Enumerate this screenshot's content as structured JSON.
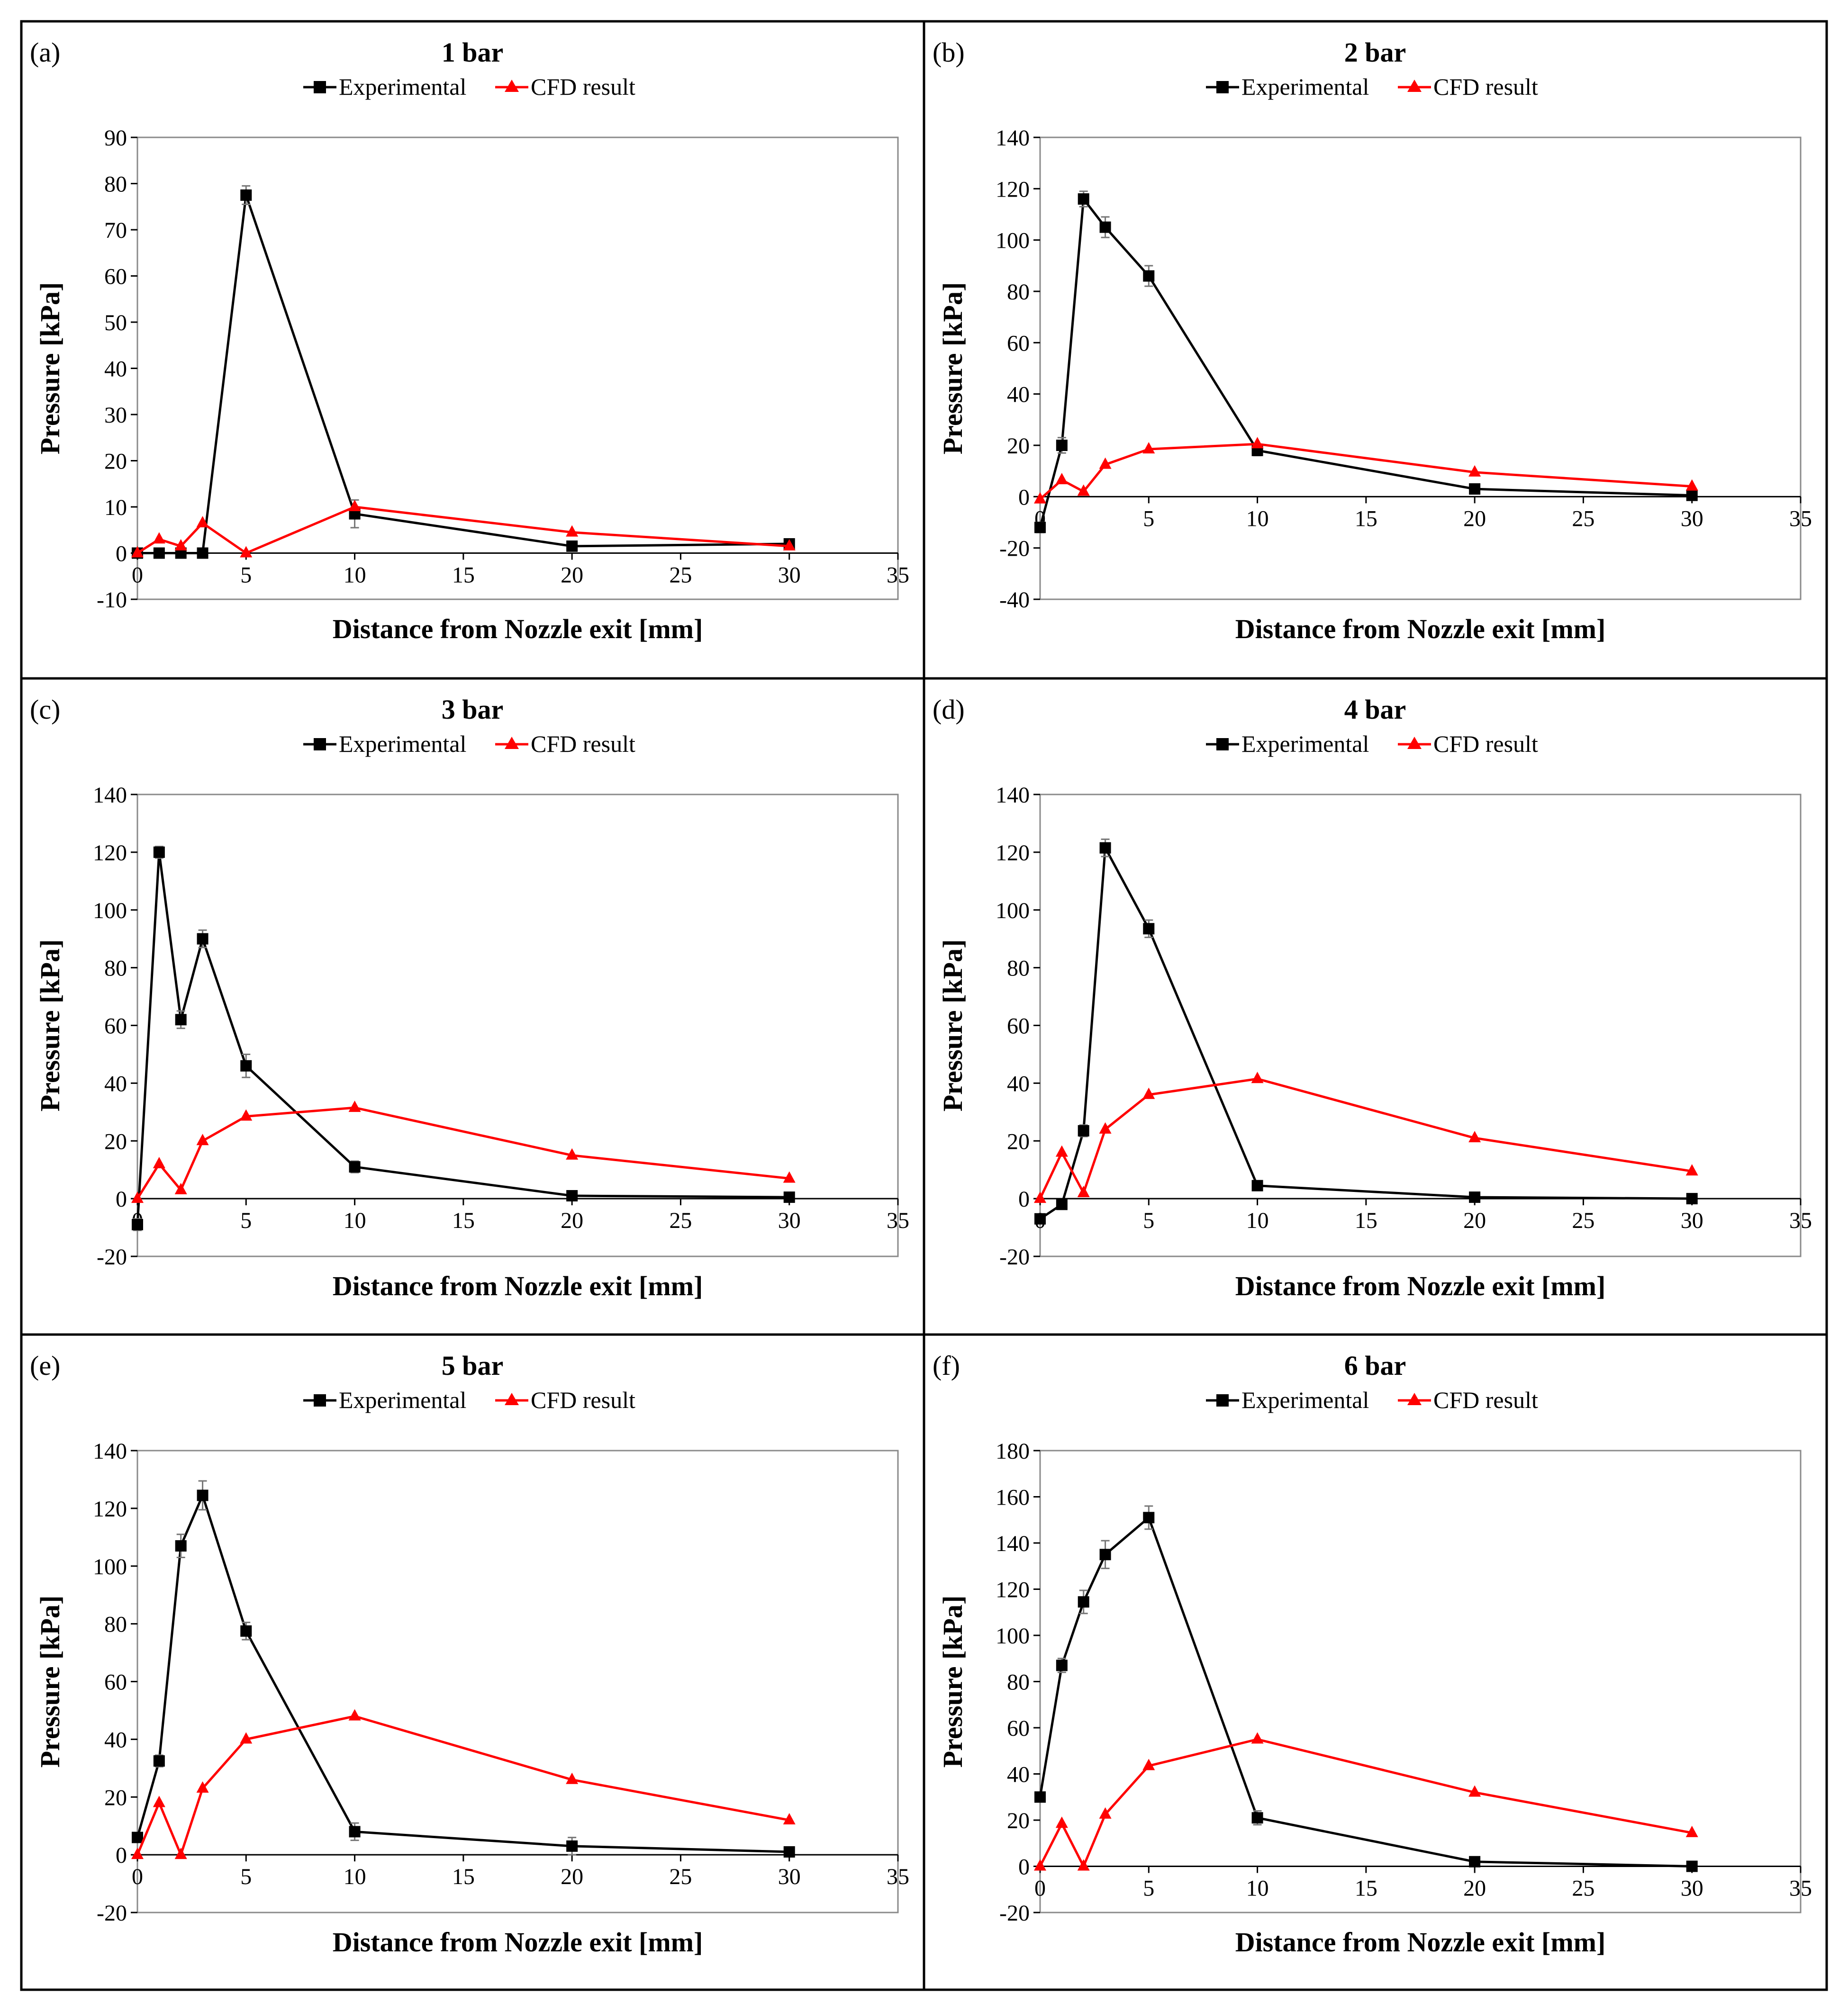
{
  "figure": {
    "colors": {
      "experimental": "#000000",
      "cfd": "#ff0000",
      "frame": "#000000",
      "error_bar": "#777777"
    }
  },
  "chart_data": [
    {
      "type": "line",
      "label": "(a)",
      "title": "1 bar",
      "xlabel": "Distance from Nozzle exit [mm]",
      "ylabel": "Pressure [kPa]",
      "xlim": [
        0,
        35
      ],
      "ylim": [
        -10,
        90
      ],
      "ytick_step": 10,
      "xticks": [
        0,
        5,
        10,
        15,
        20,
        25,
        30,
        35
      ],
      "xtick_labels": [
        "0",
        "5",
        "10",
        "15",
        "20",
        "25",
        "30",
        "35"
      ],
      "ytick_labels": [
        "-10",
        "0",
        "10",
        "20",
        "30",
        "40",
        "50",
        "60",
        "70",
        "80",
        "90"
      ],
      "legend": {
        "position": "top-center",
        "entries": [
          "Experimental",
          "CFD result"
        ]
      },
      "series": [
        {
          "name": "Experimental",
          "marker": "square",
          "x": [
            0,
            1,
            2,
            3,
            5,
            10,
            20,
            30
          ],
          "y": [
            0,
            0,
            0,
            0,
            77.5,
            8.5,
            1.5,
            2
          ],
          "err": [
            0,
            0,
            0,
            0,
            2,
            3,
            0.5,
            0.5
          ]
        },
        {
          "name": "CFD result",
          "marker": "triangle",
          "x": [
            0,
            1,
            2,
            3,
            5,
            10,
            20,
            30
          ],
          "y": [
            0,
            3,
            1.5,
            6.5,
            0,
            10,
            4.5,
            1.5
          ]
        }
      ]
    },
    {
      "type": "line",
      "label": "(b)",
      "title": "2 bar",
      "xlabel": "Distance from Nozzle exit [mm]",
      "ylabel": "Pressure [kPa]",
      "xlim": [
        0,
        35
      ],
      "ylim": [
        -40,
        140
      ],
      "ytick_step": 20,
      "xticks": [
        0,
        5,
        10,
        15,
        20,
        25,
        30,
        35
      ],
      "xtick_labels": [
        "0",
        "5",
        "10",
        "15",
        "20",
        "25",
        "30",
        "35"
      ],
      "ytick_labels": [
        "-40",
        "-20",
        "0",
        "20",
        "40",
        "60",
        "80",
        "100",
        "120",
        "140"
      ],
      "legend": {
        "position": "top-center",
        "entries": [
          "Experimental",
          "CFD result"
        ]
      },
      "series": [
        {
          "name": "Experimental",
          "marker": "square",
          "x": [
            0,
            1,
            2,
            3,
            5,
            10,
            20,
            30
          ],
          "y": [
            -12,
            20,
            116,
            105,
            86,
            18,
            3,
            0.5
          ],
          "err": [
            2,
            3,
            3,
            4,
            4,
            2,
            1,
            0.5
          ]
        },
        {
          "name": "CFD result",
          "marker": "triangle",
          "x": [
            0,
            1,
            2,
            3,
            5,
            10,
            20,
            30
          ],
          "y": [
            -1,
            6.5,
            2,
            12.5,
            18.5,
            20.5,
            9.5,
            4
          ]
        }
      ]
    },
    {
      "type": "line",
      "label": "(c)",
      "title": "3 bar",
      "xlabel": "Distance from Nozzle exit [mm]",
      "ylabel": "Pressure [kPa]",
      "xlim": [
        0,
        35
      ],
      "ylim": [
        -20,
        140
      ],
      "ytick_step": 20,
      "xticks": [
        0,
        5,
        10,
        15,
        20,
        25,
        30,
        35
      ],
      "xtick_labels": [
        "0",
        "5",
        "10",
        "15",
        "20",
        "25",
        "30",
        "35"
      ],
      "ytick_labels": [
        "-20",
        "0",
        "20",
        "40",
        "60",
        "80",
        "100",
        "120",
        "140"
      ],
      "legend": {
        "position": "top-center",
        "entries": [
          "Experimental",
          "CFD result"
        ]
      },
      "series": [
        {
          "name": "Experimental",
          "marker": "square",
          "x": [
            0,
            1,
            2,
            3,
            5,
            10,
            20,
            30
          ],
          "y": [
            -9,
            120,
            62,
            90,
            46,
            11,
            1,
            0.5
          ],
          "err": [
            2,
            2,
            3,
            3,
            4,
            2,
            1,
            0.5
          ]
        },
        {
          "name": "CFD result",
          "marker": "triangle",
          "x": [
            0,
            1,
            2,
            3,
            5,
            10,
            20,
            30
          ],
          "y": [
            0,
            12,
            3,
            20,
            28.5,
            31.5,
            15,
            7
          ]
        }
      ]
    },
    {
      "type": "line",
      "label": "(d)",
      "title": "4 bar",
      "xlabel": "Distance from Nozzle exit [mm]",
      "ylabel": "Pressure [kPa]",
      "xlim": [
        0,
        35
      ],
      "ylim": [
        -20,
        140
      ],
      "ytick_step": 20,
      "xticks": [
        0,
        5,
        10,
        15,
        20,
        25,
        30,
        35
      ],
      "xtick_labels": [
        "0",
        "5",
        "10",
        "15",
        "20",
        "25",
        "30",
        "35"
      ],
      "ytick_labels": [
        "-20",
        "0",
        "20",
        "40",
        "60",
        "80",
        "100",
        "120",
        "140"
      ],
      "legend": {
        "position": "top-center",
        "entries": [
          "Experimental",
          "CFD result"
        ]
      },
      "series": [
        {
          "name": "Experimental",
          "marker": "square",
          "x": [
            0,
            1,
            2,
            3,
            5,
            10,
            20,
            30
          ],
          "y": [
            -7,
            -2,
            23.5,
            121.5,
            93.5,
            4.5,
            0.5,
            0
          ],
          "err": [
            1,
            1,
            2,
            3,
            3,
            1.5,
            1,
            0.5
          ]
        },
        {
          "name": "CFD result",
          "marker": "triangle",
          "x": [
            0,
            1,
            2,
            3,
            5,
            10,
            20,
            30
          ],
          "y": [
            0,
            16,
            2,
            24,
            36,
            41.5,
            21,
            9.5
          ]
        }
      ]
    },
    {
      "type": "line",
      "label": "(e)",
      "title": "5 bar",
      "xlabel": "Distance from Nozzle exit [mm]",
      "ylabel": "Pressure [kPa]",
      "xlim": [
        0,
        35
      ],
      "ylim": [
        -20,
        140
      ],
      "ytick_step": 20,
      "xticks": [
        0,
        5,
        10,
        15,
        20,
        25,
        30,
        35
      ],
      "xtick_labels": [
        "0",
        "5",
        "10",
        "15",
        "20",
        "25",
        "30",
        "35"
      ],
      "ytick_labels": [
        "-20",
        "0",
        "20",
        "40",
        "60",
        "80",
        "100",
        "120",
        "140"
      ],
      "legend": {
        "position": "top-center",
        "entries": [
          "Experimental",
          "CFD result"
        ]
      },
      "series": [
        {
          "name": "Experimental",
          "marker": "square",
          "x": [
            0,
            1,
            2,
            3,
            5,
            10,
            20,
            30
          ],
          "y": [
            6,
            32.5,
            107,
            124.5,
            77.5,
            8,
            3,
            1
          ],
          "err": [
            1.5,
            2,
            4,
            5,
            3,
            3,
            3,
            1.5
          ]
        },
        {
          "name": "CFD result",
          "marker": "triangle",
          "x": [
            0,
            1,
            2,
            3,
            5,
            10,
            20,
            30
          ],
          "y": [
            0,
            18,
            0,
            23,
            40,
            48,
            26,
            12
          ]
        }
      ]
    },
    {
      "type": "line",
      "label": "(f)",
      "title": "6 bar",
      "xlabel": "Distance from Nozzle exit [mm]",
      "ylabel": "Pressure [kPa]",
      "xlim": [
        0,
        35
      ],
      "ylim": [
        -20,
        180
      ],
      "ytick_step": 20,
      "xticks": [
        0,
        5,
        10,
        15,
        20,
        25,
        30,
        35
      ],
      "xtick_labels": [
        "0",
        "5",
        "10",
        "15",
        "20",
        "25",
        "30",
        "35"
      ],
      "ytick_labels": [
        "-20",
        "0",
        "20",
        "40",
        "60",
        "80",
        "100",
        "120",
        "140",
        "160",
        "180"
      ],
      "legend": {
        "position": "top-center",
        "entries": [
          "Experimental",
          "CFD result"
        ]
      },
      "series": [
        {
          "name": "Experimental",
          "marker": "square",
          "x": [
            0,
            1,
            2,
            3,
            5,
            10,
            20,
            30
          ],
          "y": [
            30,
            87,
            114.5,
            135,
            151,
            21,
            2,
            0
          ],
          "err": [
            2,
            3,
            5,
            6,
            5,
            3,
            1,
            0.5
          ]
        },
        {
          "name": "CFD result",
          "marker": "triangle",
          "x": [
            0,
            1,
            2,
            3,
            5,
            10,
            20,
            30
          ],
          "y": [
            0,
            18.5,
            0,
            22.5,
            43.5,
            55,
            32,
            14.5
          ]
        }
      ]
    }
  ]
}
